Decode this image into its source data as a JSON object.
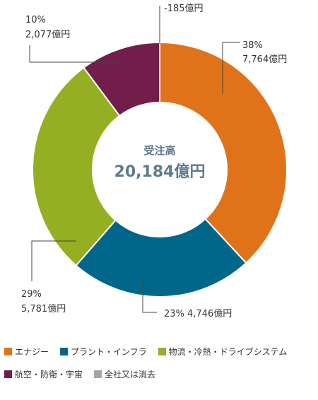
{
  "chart_data": {
    "type": "donut",
    "center_title": "受注高",
    "center_value": "20,184億円",
    "series": [
      {
        "name": "エナジー",
        "value": 7764,
        "value_label": "7,764億円",
        "percent_label": "38%",
        "color": "#e0731a"
      },
      {
        "name": "プラント・インフラ",
        "value": 4746,
        "value_label": "4,746億円",
        "percent_label": "23%",
        "color": "#00668a"
      },
      {
        "name": "物流・冷熱・ドライブシステム",
        "value": 5781,
        "value_label": "5,781億円",
        "percent_label": "29%",
        "color": "#94b022"
      },
      {
        "name": "航空・防衛・宇宙",
        "value": 2077,
        "value_label": "2,077億円",
        "percent_label": "10%",
        "color": "#731d4b"
      },
      {
        "name": "全社又は消去",
        "value": -185,
        "value_label": "-185億円",
        "percent_label": "",
        "color": "#a5a5a5"
      }
    ]
  }
}
